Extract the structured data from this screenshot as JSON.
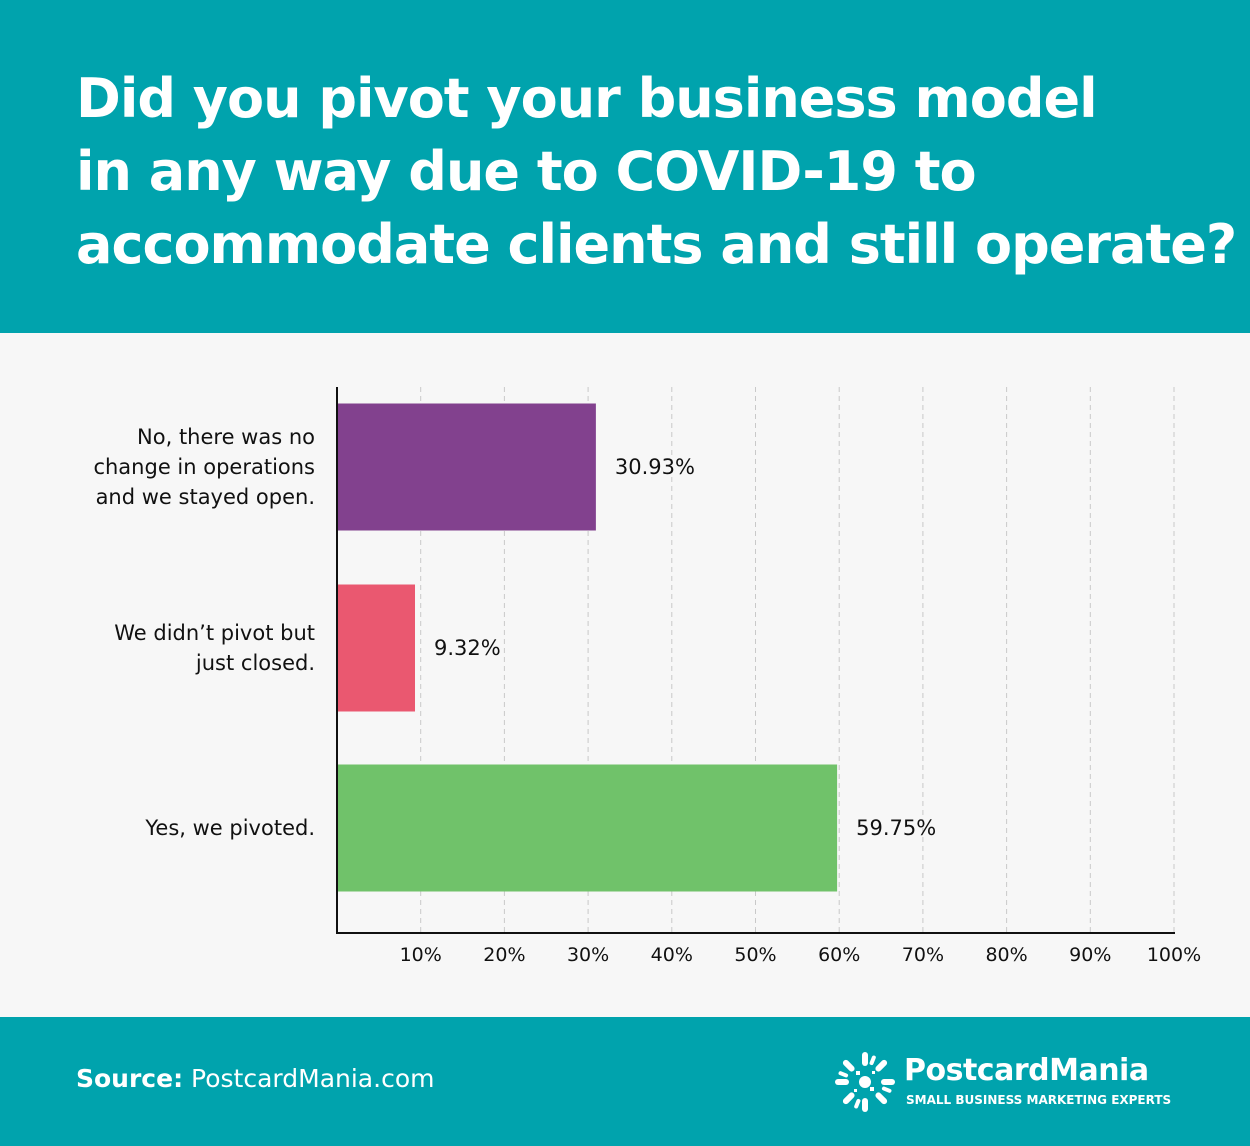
{
  "title_lines": [
    "Did you pivot your business model",
    "in any way due to COVID-19 to",
    "accommodate clients and still operate?"
  ],
  "chart_data": {
    "type": "bar",
    "orientation": "horizontal",
    "categories": [
      [
        "No, there was no",
        "change in operations",
        "and we stayed open."
      ],
      [
        "We didn’t pivot but",
        "just closed."
      ],
      [
        "Yes, we pivoted."
      ]
    ],
    "values": [
      30.93,
      9.32,
      59.75
    ],
    "value_labels": [
      "30.93%",
      "9.32%",
      "59.75%"
    ],
    "colors": [
      "#82418e",
      "#ea5870",
      "#70c26a"
    ],
    "x_ticks": [
      10,
      20,
      30,
      40,
      50,
      60,
      70,
      80,
      90,
      100
    ],
    "x_tick_labels": [
      "10%",
      "20%",
      "30%",
      "40%",
      "50%",
      "60%",
      "70%",
      "80%",
      "90%",
      "100%"
    ],
    "xlim": [
      0,
      100
    ],
    "grid": "vertical dashed"
  },
  "footer": {
    "source_label": "Source:",
    "source_value": "PostcardMania.com",
    "brand_name": "PostcardMania",
    "brand_tagline": "SMALL BUSINESS MARKETING EXPERTS"
  },
  "colors": {
    "header_bg": "#00a3ad",
    "body_bg": "#f7f7f7"
  },
  "icons": {
    "logo": "starburst-logo-icon"
  }
}
